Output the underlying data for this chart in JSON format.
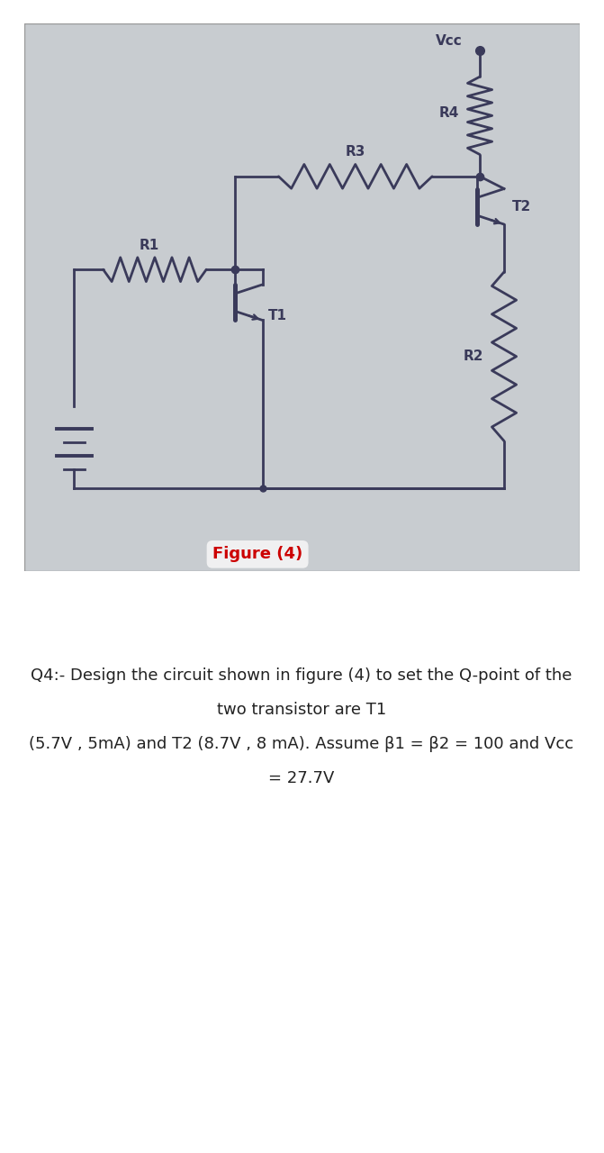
{
  "panel_bg": "#c8ccd0",
  "figure_label": "Figure (4)",
  "figure_label_color": "#cc0000",
  "question_line1": "Q4:- Design the circuit shown in figure (4) to set the Q-point of the",
  "question_line2": "two transistor are T1",
  "question_line3": "(5.7V , 5mA) and T2 (8.7V , 8 mA). Assume β1 = β2 = 100 and Vcc",
  "question_line4": "= 27.7V",
  "text_color": "#222222",
  "lc": "#3a3a5a",
  "vcc_label": "Vcc",
  "r1_label": "R1",
  "r2_label": "R2",
  "r3_label": "R3",
  "r4_label": "R4",
  "t1_label": "T1",
  "t2_label": "T2",
  "label_fontsize": 11,
  "q_fontsize": 13
}
